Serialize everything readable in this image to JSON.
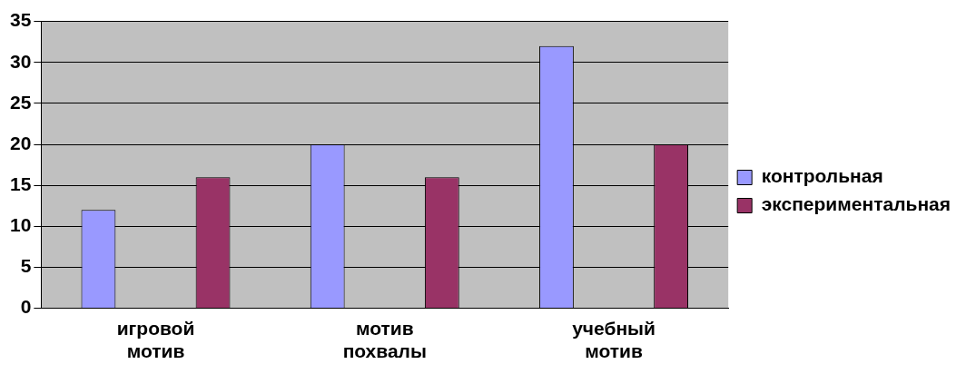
{
  "chart_data": {
    "type": "bar",
    "categories": [
      "игровой мотив",
      "мотив похвалы",
      "учебный мотив"
    ],
    "series": [
      {
        "name": "контрольная",
        "color": "#9999ff",
        "values": [
          12,
          20,
          32
        ]
      },
      {
        "name": "экспериментальная",
        "color": "#993366",
        "values": [
          16,
          16,
          20
        ]
      }
    ],
    "ylim": [
      0,
      35
    ],
    "yticks": [
      0,
      5,
      10,
      15,
      20,
      25,
      30,
      35
    ],
    "grid": "y",
    "legend": "right"
  }
}
